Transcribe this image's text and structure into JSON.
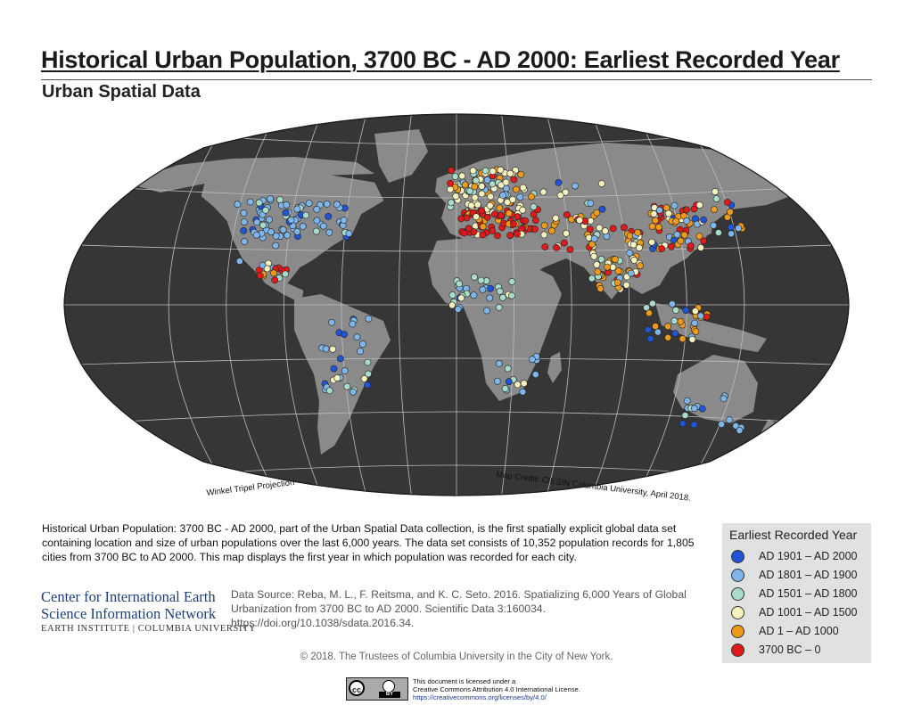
{
  "title": "Historical Urban Population, 3700 BC - AD 2000: Earliest Recorded Year",
  "subtitle": "Urban Spatial Data",
  "map": {
    "projection_label": "Winkel Tripel Projection",
    "credit_label": "Map Credit: CIESIN Columbia University, April 2018.",
    "ocean_color": "#363636",
    "land_color": "#8a8a8a",
    "graticule_color": "#bcbcbc"
  },
  "description": "Historical Urban Population: 3700 BC - AD 2000, part of the Urban Spatial Data collection, is the first spatially explicit global data set containing location and size of urban populations over the last 6,000 years. The data set consists of 10,352 population records for 1,805 cities from 3700 BC to AD 2000. This map displays the first year in which population was recorded for each city.",
  "organization": {
    "line1": "Center for International Earth",
    "line2": "Science Information Network",
    "line3": "EARTH INSTITUTE | COLUMBIA UNIVERSITY"
  },
  "data_source": "Data Source: Reba, M. L., F. Reitsma, and K. C. Seto. 2016. Spatializing 6,000 Years of Global Urbanization from 3700 BC to AD 2000. Scientific Data 3:160034. https://doi.org/10.1038/sdata.2016.34.",
  "legend": {
    "title": "Earliest Recorded Year",
    "items": [
      {
        "label": "AD 1901 – AD 2000",
        "color": "#1f55d6"
      },
      {
        "label": "AD 1801 – AD 1900",
        "color": "#7fb6ea"
      },
      {
        "label": "AD 1501 – AD 1800",
        "color": "#a9dcc8"
      },
      {
        "label": "AD 1001 – AD 1500",
        "color": "#f6f2c0"
      },
      {
        "label": "AD 1 – AD 1000",
        "color": "#ee9a1c"
      },
      {
        "label": "3700 BC – 0",
        "color": "#e01a1a"
      }
    ]
  },
  "copyright": "© 2018. The Trustees of Columbia University in the City of New York.",
  "license": {
    "badge": "BY",
    "line1": "This document is licensed under a",
    "line2": "Creative Commons Attribution 4.0 International License.",
    "line3": "https://creativecommons.org/licenses/by/4.0/"
  }
}
